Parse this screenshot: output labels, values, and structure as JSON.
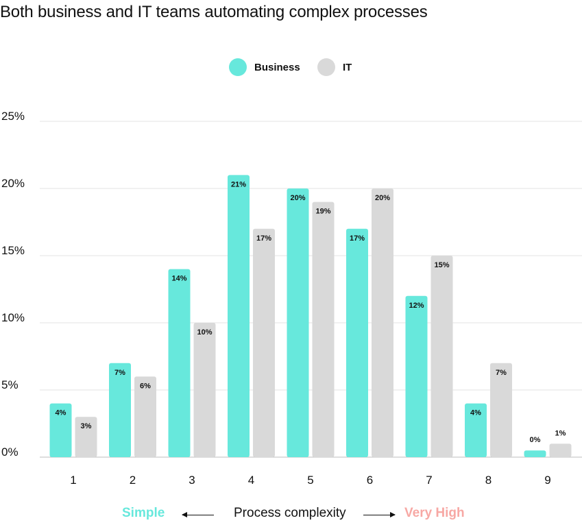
{
  "chart_data": {
    "type": "bar",
    "title": "Both business and IT teams automating complex processes",
    "categories": [
      "1",
      "2",
      "3",
      "4",
      "5",
      "6",
      "7",
      "8",
      "9"
    ],
    "series": [
      {
        "name": "Business",
        "color": "#67e8dc",
        "values": [
          4,
          7,
          14,
          21,
          20,
          17,
          12,
          4,
          0
        ],
        "labels": [
          "4%",
          "7%",
          "14%",
          "21%",
          "20%",
          "17%",
          "12%",
          "4%",
          "0%"
        ]
      },
      {
        "name": "IT",
        "color": "#d9d9d9",
        "values": [
          3,
          6,
          10,
          17,
          19,
          20,
          15,
          7,
          1
        ],
        "labels": [
          "3%",
          "6%",
          "10%",
          "17%",
          "19%",
          "20%",
          "15%",
          "7%",
          "1%"
        ]
      }
    ],
    "ylim": [
      0,
      25
    ],
    "yticks": [
      "0%",
      "5%",
      "10%",
      "15%",
      "20%",
      "25%"
    ],
    "ytick_values": [
      0,
      5,
      10,
      15,
      20,
      25
    ],
    "grid": true,
    "legend": "top-center",
    "xlabel": {
      "left": "Simple",
      "center": "Process complexity",
      "right": "Very High",
      "left_color": "#67e8dc",
      "right_color": "#f7a8a4"
    }
  }
}
